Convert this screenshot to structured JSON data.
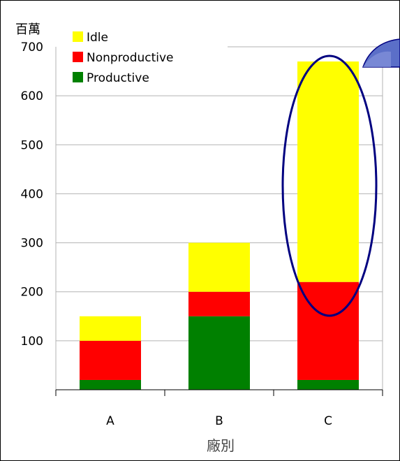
{
  "chart_data": {
    "type": "bar",
    "stacked": true,
    "unit_label": "百萬",
    "xlabel": "廠別",
    "ylabel": "",
    "categories": [
      "A",
      "B",
      "C"
    ],
    "ylim": [
      0,
      700
    ],
    "yticks": [
      100,
      200,
      300,
      400,
      500,
      600,
      700
    ],
    "series": [
      {
        "name": "Productive",
        "values": [
          20,
          150,
          20
        ],
        "color": "#008000"
      },
      {
        "name": "Nonproductive",
        "values": [
          80,
          50,
          200
        ],
        "color": "#ff0000"
      },
      {
        "name": "Idle",
        "values": [
          50,
          100,
          450
        ],
        "color": "#ffff00"
      }
    ],
    "legend_order": [
      "Idle",
      "Nonproductive",
      "Productive"
    ],
    "legend_position": "top-left",
    "grid": true,
    "annotations": [
      {
        "type": "ellipse-highlight",
        "target_category": "C",
        "color": "#000080"
      },
      {
        "type": "folded-corner-shape",
        "color": "#5b6fc8"
      }
    ]
  }
}
